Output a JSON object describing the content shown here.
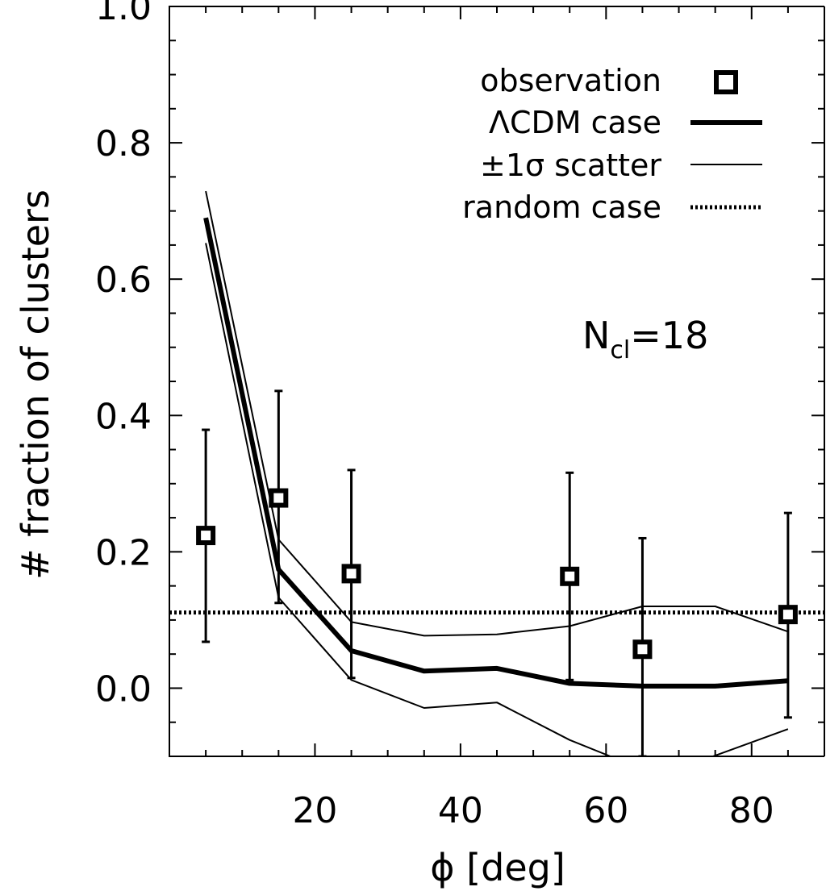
{
  "chart_data": {
    "type": "scatter",
    "title": "",
    "xlabel": "ϕ [deg]",
    "ylabel": "# fraction of clusters",
    "xlim": [
      0,
      90
    ],
    "ylim": [
      -0.1,
      1.0
    ],
    "x_ticks": [
      "20",
      "40",
      "60",
      "80"
    ],
    "y_ticks": [
      "0.0",
      "0.2",
      "0.4",
      "0.6",
      "0.8",
      "1.0"
    ],
    "grid": false,
    "legend_position": "top-right",
    "legend": [
      {
        "label": "observation",
        "marker": "square"
      },
      {
        "label": "ΛCDM case",
        "marker": "thick-line"
      },
      {
        "label": "±1σ scatter",
        "marker": "thin-line"
      },
      {
        "label": "random case",
        "marker": "dotted-line"
      }
    ],
    "annotation": {
      "main": "N",
      "sub": "cl",
      "rest": "=18"
    },
    "series": [
      {
        "name": "observation",
        "type": "scatter",
        "x": [
          5,
          15,
          25,
          55,
          65,
          85
        ],
        "y": [
          0.224,
          0.279,
          0.168,
          0.164,
          0.057,
          0.108
        ],
        "error_lower": [
          0.068,
          0.125,
          0.015,
          0.012,
          -0.1,
          -0.043
        ],
        "error_upper": [
          0.379,
          0.436,
          0.32,
          0.316,
          0.22,
          0.257
        ]
      },
      {
        "name": "ΛCDM case",
        "type": "line",
        "x": [
          5,
          15,
          25,
          35,
          45,
          55,
          65,
          75,
          85
        ],
        "y": [
          0.69,
          0.174,
          0.055,
          0.025,
          0.029,
          0.007,
          0.003,
          0.003,
          0.011
        ]
      },
      {
        "name": "±1σ scatter",
        "type": "line",
        "x": [
          5,
          15,
          25,
          35,
          45,
          55,
          65,
          75,
          85
        ],
        "y": [
          0.729,
          0.218,
          0.097,
          0.077,
          0.079,
          0.091,
          0.12,
          0.12,
          0.083
        ]
      },
      {
        "name": "±1σ scatter",
        "type": "line",
        "x": [
          5,
          15,
          25,
          35,
          45,
          55,
          60.6,
          74.7,
          85
        ],
        "y": [
          0.653,
          0.133,
          0.012,
          -0.029,
          -0.021,
          -0.076,
          -0.1,
          -0.1,
          -0.06
        ]
      },
      {
        "name": "random case",
        "type": "hline",
        "y": 0.111
      }
    ]
  }
}
